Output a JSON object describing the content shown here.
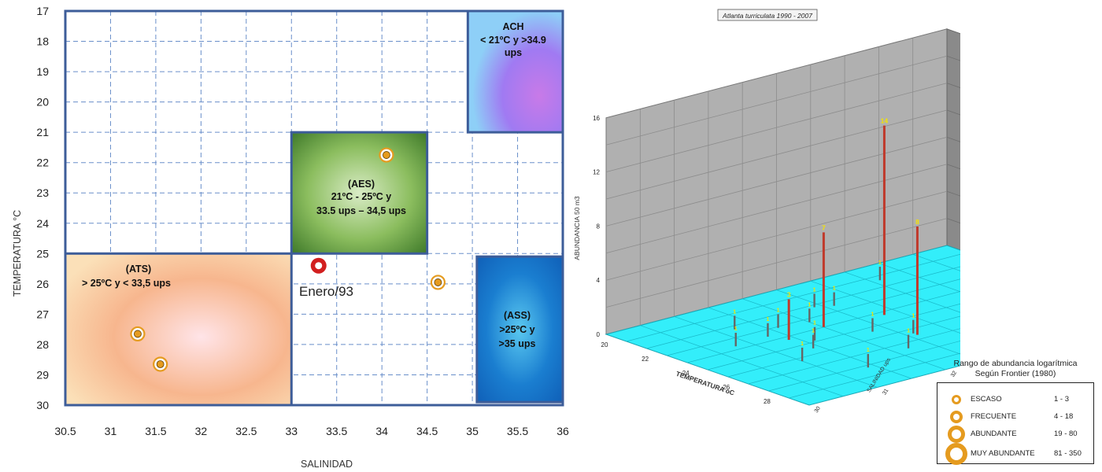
{
  "chart_data": [
    {
      "type": "scatter",
      "xlabel": "SALINIDAD",
      "ylabel": "TEMPERATURA °C",
      "xlim": [
        30.5,
        36
      ],
      "ylim": [
        30,
        17
      ],
      "y_inverted": true,
      "x_ticks": [
        "30.5",
        "31",
        "31.5",
        "32",
        "32.5",
        "33",
        "33.5",
        "34",
        "34.5",
        "35",
        "35.5",
        "36"
      ],
      "y_ticks": [
        "17",
        "18",
        "19",
        "20",
        "21",
        "22",
        "23",
        "24",
        "25",
        "26",
        "27",
        "28",
        "29",
        "30"
      ],
      "grid": true,
      "regions": [
        {
          "label": "(ATS)",
          "text": "> 25ºC   y  < 33,5 ups",
          "x0": 30.5,
          "x1": 33.0,
          "y0": 25,
          "y1": 30,
          "colors": [
            "#ffe4e8",
            "#f7b68e",
            "#fbe0b8"
          ]
        },
        {
          "label": "(AES)",
          "text": "21ºC - 25ºC   y",
          "text2": "33.5 ups – 34,5 ups",
          "x0": 33.0,
          "x1": 34.5,
          "y0": 21,
          "y1": 25,
          "colors": [
            "#d9ecc6",
            "#8bbd5e",
            "#3f7a2a"
          ]
        },
        {
          "label": "ACH",
          "text": "< 21ºC  y  >34.9",
          "text2": "ups",
          "x0": 34.95,
          "x1": 36,
          "y0": 17,
          "y1": 21,
          "colors": [
            "#c87ae8",
            "#a07af2",
            "#8ecff7"
          ]
        },
        {
          "label": "(ASS)",
          "text": ">25ºC   y",
          "text2": ">35  ups",
          "x0": 35.05,
          "x1": 36,
          "y0": 25.1,
          "y1": 29.9,
          "colors": [
            "#5ac8f0",
            "#1a7ed0",
            "#1060b8"
          ]
        }
      ],
      "points": [
        {
          "x": 34.05,
          "y": 21.75,
          "style": "escaso"
        },
        {
          "x": 34.62,
          "y": 25.95,
          "style": "escaso"
        },
        {
          "x": 31.3,
          "y": 27.65,
          "style": "escaso"
        },
        {
          "x": 31.55,
          "y": 28.65,
          "style": "escaso"
        },
        {
          "x": 33.3,
          "y": 25.4,
          "style": "highlight"
        }
      ],
      "annotation": "Enero/93"
    },
    {
      "type": "bar3d",
      "title": "Atlanta turriculata  1990 - 2007",
      "xlabel": "TEMPERATURA oC",
      "ylabel": "SALINIDAD ups",
      "zlabel": "ABUNDANCIA  50 m3",
      "xlim": [
        20,
        30
      ],
      "ylim": [
        30,
        35
      ],
      "zlim": [
        0,
        16
      ],
      "x_ticks": [
        "20",
        "22",
        "24",
        "26",
        "28"
      ],
      "y_ticks": [
        "30",
        "31",
        "32",
        "33",
        "34",
        "35"
      ],
      "z_ticks": [
        "0",
        "4",
        "8",
        "12",
        "16"
      ],
      "bars": [
        {
          "x": 24.3,
          "y": 32.8,
          "z": 14,
          "label": "14"
        },
        {
          "x": 26.6,
          "y": 32.6,
          "z": 8,
          "label": "8"
        },
        {
          "x": 24.0,
          "y": 32.0,
          "z": 7,
          "label": "7"
        },
        {
          "x": 24.3,
          "y": 31.4,
          "z": 3,
          "label": "3"
        },
        {
          "x": 27.0,
          "y": 34.4,
          "z": 1,
          "label": "1"
        },
        {
          "x": 21.4,
          "y": 33.6,
          "z": 1,
          "label": "1"
        },
        {
          "x": 22.5,
          "y": 32.6,
          "z": 1,
          "label": "1"
        },
        {
          "x": 22.2,
          "y": 32.4,
          "z": 1,
          "label": "1"
        },
        {
          "x": 23.3,
          "y": 32.0,
          "z": 1,
          "label": "1"
        },
        {
          "x": 23.1,
          "y": 31.6,
          "z": 1,
          "label": "1"
        },
        {
          "x": 23.6,
          "y": 31.3,
          "z": 1,
          "label": "1"
        },
        {
          "x": 23.7,
          "y": 30.8,
          "z": 1,
          "label": "1"
        },
        {
          "x": 25.4,
          "y": 32.3,
          "z": 1,
          "label": "1"
        },
        {
          "x": 24.9,
          "y": 31.6,
          "z": 1,
          "label": "1"
        },
        {
          "x": 25.5,
          "y": 31.4,
          "z": 1,
          "label": "1"
        },
        {
          "x": 26.0,
          "y": 33.8,
          "z": 1,
          "label": "1"
        },
        {
          "x": 26.4,
          "y": 32.6,
          "z": 1,
          "label": "1"
        },
        {
          "x": 26.3,
          "y": 31.0,
          "z": 1,
          "label": "1"
        },
        {
          "x": 27.5,
          "y": 32.2,
          "z": 1,
          "label": "1"
        },
        {
          "x": 28.2,
          "y": 31.4,
          "z": 1,
          "label": "1"
        },
        {
          "x": 22.3,
          "y": 31.2,
          "z": 1,
          "label": "1"
        }
      ]
    }
  ],
  "legend": {
    "title": "Rango de abundancia logarítmica",
    "subtitle": "Según Frontier (1980)",
    "items": [
      {
        "label": "ESCASO",
        "range": "1 - 3",
        "size": 12,
        "ring": 3
      },
      {
        "label": "FRECUENTE",
        "range": "4 - 18",
        "size": 16,
        "ring": 4
      },
      {
        "label": "ABUNDANTE",
        "range": "19 - 80",
        "size": 22,
        "ring": 5
      },
      {
        "label": "MUY ABUNDANTE",
        "range": "81 - 350",
        "size": 28,
        "ring": 6
      }
    ]
  },
  "colors": {
    "grid": "#6a8fca",
    "frame": "#3d5d99",
    "point_ring": "#e59b1f",
    "highlight_ring": "#d21f1f",
    "floor": "#33eefa",
    "wall_left": "#b0b0b0",
    "wall_back": "#8a8a8a",
    "bar_tall": "#c0392b",
    "bar_short": "#666666",
    "bar_label": "#f4e400"
  }
}
